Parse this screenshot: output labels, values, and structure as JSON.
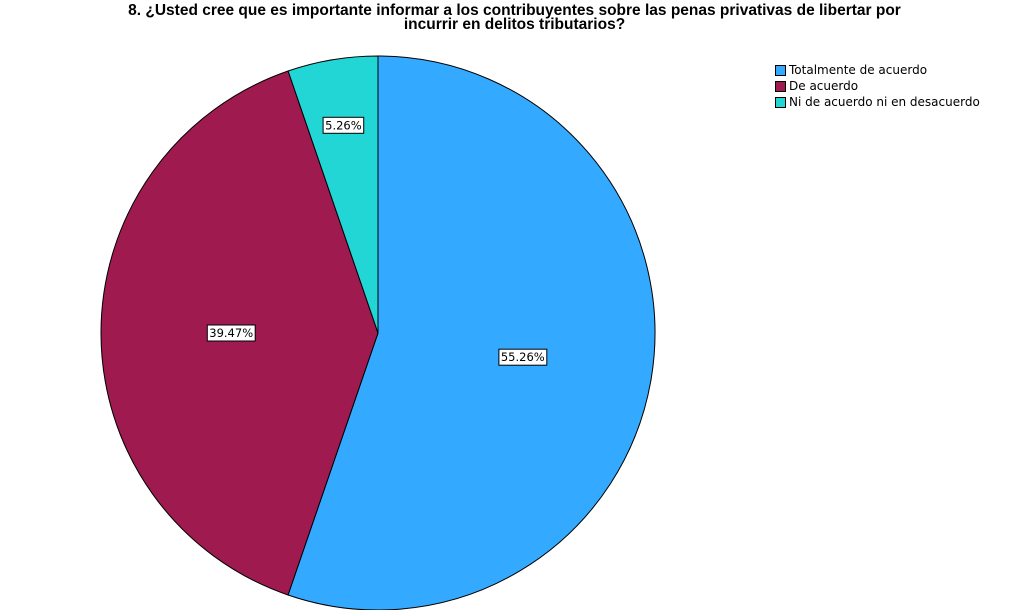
{
  "chart_data": {
    "type": "pie",
    "title": "8. ¿Usted cree que es importante informar a los contribuyentes sobre las penas privativas de libertar por incurrir en delitos tributarios?",
    "title_lines": [
      "8. ¿Usted cree que es importante informar a los contribuyentes sobre las penas privativas de libertar por",
      "incurrir en delitos tributarios?"
    ],
    "legend_position": "top-right",
    "slices": [
      {
        "name": "Totalmente de acuerdo",
        "value": 55.26,
        "label": "55.26%",
        "color": "#33aaff"
      },
      {
        "name": "De acuerdo",
        "value": 39.47,
        "label": "39.47%",
        "color": "#9e1a4f"
      },
      {
        "name": "Ni de acuerdo ni en desacuerdo",
        "value": 5.26,
        "label": "5.26%",
        "color": "#22d6d6"
      }
    ]
  }
}
